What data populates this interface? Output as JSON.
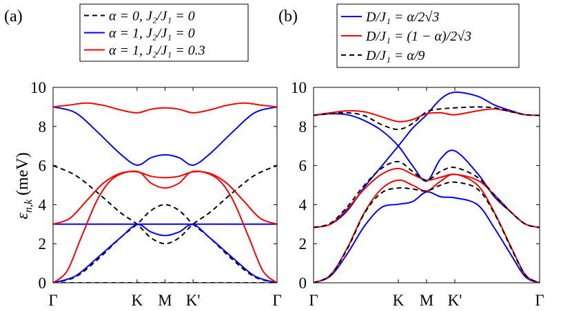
{
  "figure_title": "",
  "chart_data": [
    {
      "type": "line",
      "panel_label": "(a)",
      "xlabel": "",
      "ylabel": "ε_{n,k} (meV)",
      "ylabel_text": {
        "symbol": "ε",
        "subscript": "n,k",
        "unit": "(meV)"
      },
      "xlim": [
        0,
        4
      ],
      "ylim": [
        0,
        10
      ],
      "grid": false,
      "legend_placement": "top",
      "xticks": [
        {
          "value": 0,
          "label": "Γ"
        },
        {
          "value": 1.5,
          "label": "K"
        },
        {
          "value": 2.0,
          "label": "M"
        },
        {
          "value": 2.5,
          "label": "K'"
        },
        {
          "value": 4.0,
          "label": "Γ"
        }
      ],
      "yticks": [
        0,
        2,
        4,
        6,
        8,
        10
      ],
      "series": [
        {
          "name": "α = 0, J2/J1 = 0",
          "legend": "α = 0, J₂/J₁ = 0",
          "color": "#000000",
          "dash": true,
          "bands": [
            {
              "x": [
                0,
                1.5,
                2.5,
                4
              ],
              "y": [
                0,
                0,
                0,
                0
              ]
            },
            {
              "x": [
                0,
                0.4,
                0.8,
                1.2,
                1.5,
                1.75,
                2.0,
                2.25,
                2.5,
                2.8,
                3.2,
                3.6,
                4.0
              ],
              "y": [
                6,
                5.5,
                4.6,
                3.6,
                3,
                2.3,
                2,
                2.3,
                3,
                3.6,
                4.6,
                5.5,
                6
              ]
            },
            {
              "x": [
                0,
                0.4,
                0.8,
                1.2,
                1.5,
                1.75,
                2.0,
                2.25,
                2.5,
                2.8,
                3.2,
                3.6,
                4.0
              ],
              "y": [
                0,
                0.3,
                1.2,
                2.3,
                3,
                3.7,
                4,
                3.7,
                3,
                2.3,
                1.2,
                0.3,
                0
              ]
            }
          ]
        },
        {
          "name": "α = 1, J2/J1 = 0",
          "legend": "α = 1, J₂/J₁ = 0",
          "color": "#0000ff",
          "dash": false,
          "bands": [
            {
              "x": [
                0,
                4
              ],
              "y": [
                3,
                3
              ]
            },
            {
              "x": [
                0,
                0.4,
                0.8,
                1.2,
                1.5,
                1.75,
                2.0,
                2.25,
                2.5,
                2.8,
                3.2,
                3.6,
                4.0
              ],
              "y": [
                0,
                0.35,
                1.3,
                2.3,
                2.98,
                2.6,
                2.42,
                2.6,
                2.98,
                2.3,
                1.3,
                0.35,
                0
              ]
            },
            {
              "x": [
                0,
                0.4,
                0.8,
                1.2,
                1.5,
                1.75,
                2.0,
                2.25,
                2.5,
                2.8,
                3.2,
                3.6,
                4.0
              ],
              "y": [
                9,
                8.7,
                7.7,
                6.6,
                6.02,
                6.4,
                6.55,
                6.4,
                6.02,
                6.6,
                7.7,
                8.7,
                9
              ]
            }
          ]
        },
        {
          "name": "α = 1, J2/J1 = 0.3",
          "legend": "α = 1, J₂/J₁ = 0.3",
          "color": "#ff0000",
          "dash": false,
          "bands": [
            {
              "x": [
                0,
                0.25,
                0.5,
                0.8,
                1.1,
                1.5,
                1.75,
                2.0,
                2.25,
                2.5,
                2.9,
                3.2,
                3.5,
                3.75,
                4.0
              ],
              "y": [
                0,
                0.6,
                2.3,
                4.3,
                5.4,
                5.7,
                5.1,
                4.85,
                5.1,
                5.7,
                5.4,
                4.3,
                2.3,
                0.6,
                0
              ]
            },
            {
              "x": [
                0,
                0.3,
                0.6,
                0.9,
                1.2,
                1.5,
                1.75,
                2.0,
                2.25,
                2.5,
                2.8,
                3.1,
                3.4,
                3.7,
                4.0
              ],
              "y": [
                3,
                3.3,
                4.2,
                5.1,
                5.6,
                5.68,
                5.45,
                5.38,
                5.45,
                5.68,
                5.6,
                5.1,
                4.2,
                3.3,
                3
              ]
            },
            {
              "x": [
                0,
                0.3,
                0.6,
                0.9,
                1.2,
                1.5,
                1.75,
                2.0,
                2.25,
                2.5,
                2.8,
                3.1,
                3.4,
                3.7,
                4.0
              ],
              "y": [
                9,
                9.1,
                9.2,
                9.08,
                8.85,
                8.7,
                8.88,
                8.95,
                8.88,
                8.7,
                8.85,
                9.08,
                9.2,
                9.1,
                9
              ]
            }
          ]
        }
      ]
    },
    {
      "type": "line",
      "panel_label": "(b)",
      "xlabel": "",
      "ylabel": "",
      "xlim": [
        0,
        4
      ],
      "ylim": [
        0,
        10
      ],
      "grid": false,
      "legend_placement": "top",
      "xticks": [
        {
          "value": 0,
          "label": "Γ"
        },
        {
          "value": 1.5,
          "label": "K"
        },
        {
          "value": 2.0,
          "label": "M"
        },
        {
          "value": 2.5,
          "label": "K'"
        },
        {
          "value": 4.0,
          "label": "Γ"
        }
      ],
      "yticks": [
        0,
        2,
        4,
        6,
        8,
        10
      ],
      "series": [
        {
          "name": "D/J1 = α/2√3",
          "legend": "D/J₁ = α/2√3",
          "color": "#0000ff",
          "dash": false,
          "bands": [
            {
              "x": [
                0,
                0.3,
                0.6,
                0.9,
                1.2,
                1.5,
                1.75,
                2.0,
                2.25,
                2.5,
                2.9,
                3.2,
                3.5,
                3.75,
                4.0
              ],
              "y": [
                0,
                0.35,
                1.5,
                2.9,
                3.85,
                4.02,
                4.15,
                4.65,
                4.4,
                4.35,
                4.0,
                2.8,
                1.4,
                0.3,
                0
              ]
            },
            {
              "x": [
                0,
                0.3,
                0.6,
                0.9,
                1.2,
                1.5,
                1.75,
                2.0,
                2.25,
                2.5,
                2.9,
                3.2,
                3.5,
                3.75,
                4.0
              ],
              "y": [
                2.83,
                3.0,
                3.7,
                4.9,
                5.95,
                7.0,
                7.9,
                8.6,
                9.4,
                9.75,
                9.55,
                9.1,
                8.8,
                8.6,
                8.57
              ]
            },
            {
              "x": [
                0,
                0.3,
                0.6,
                0.9,
                1.2,
                1.5,
                1.75,
                2.0,
                2.25,
                2.5,
                2.9,
                3.2,
                3.5,
                3.75,
                4.0
              ],
              "y": [
                8.57,
                8.65,
                8.6,
                8.3,
                7.8,
                7.0,
                6.0,
                5.2,
                6.35,
                6.75,
                5.6,
                4.4,
                3.6,
                3.0,
                2.83
              ]
            }
          ]
        },
        {
          "name": "D/J1 = (1−α)/2√3",
          "legend": "D/J₁ = (1 − α)/2√3",
          "color": "#ff0000",
          "dash": false,
          "bands": [
            {
              "x": [
                0,
                0.3,
                0.6,
                0.9,
                1.2,
                1.5,
                1.75,
                2.0,
                2.25,
                2.5,
                2.9,
                3.2,
                3.5,
                3.75,
                4.0
              ],
              "y": [
                0,
                0.4,
                1.8,
                3.6,
                4.8,
                5.25,
                5.0,
                4.7,
                5.2,
                5.55,
                5.0,
                3.6,
                1.8,
                0.4,
                0
              ]
            },
            {
              "x": [
                0,
                0.3,
                0.6,
                0.9,
                1.2,
                1.5,
                1.75,
                2.0,
                2.25,
                2.5,
                2.9,
                3.2,
                3.5,
                3.75,
                4.0
              ],
              "y": [
                2.83,
                3.0,
                3.8,
                4.8,
                5.55,
                5.85,
                5.55,
                5.25,
                5.4,
                5.55,
                5.25,
                4.5,
                3.6,
                3.0,
                2.83
              ]
            },
            {
              "x": [
                0,
                0.3,
                0.6,
                0.9,
                1.2,
                1.5,
                1.75,
                2.0,
                2.25,
                2.5,
                2.9,
                3.2,
                3.5,
                3.75,
                4.0
              ],
              "y": [
                8.57,
                8.7,
                8.8,
                8.75,
                8.5,
                8.25,
                8.35,
                8.65,
                8.7,
                8.6,
                8.8,
                8.9,
                8.75,
                8.6,
                8.57
              ]
            }
          ]
        },
        {
          "name": "D/J1 = α/9",
          "legend": "D/J₁ = α/9",
          "color": "#000000",
          "dash": true,
          "bands": [
            {
              "x": [
                0,
                0.3,
                0.6,
                0.9,
                1.2,
                1.5,
                1.75,
                2.0,
                2.25,
                2.5,
                2.9,
                3.2,
                3.5,
                3.75,
                4.0
              ],
              "y": [
                0,
                0.4,
                1.75,
                3.55,
                4.6,
                4.85,
                4.8,
                4.7,
                5.0,
                5.15,
                4.8,
                3.55,
                1.75,
                0.4,
                0
              ]
            },
            {
              "x": [
                0,
                0.3,
                0.6,
                0.9,
                1.2,
                1.5,
                1.75,
                2.0,
                2.25,
                2.5,
                2.9,
                3.2,
                3.5,
                3.75,
                4.0
              ],
              "y": [
                2.83,
                3.05,
                3.9,
                5.0,
                5.85,
                6.2,
                5.7,
                5.25,
                5.7,
                5.9,
                5.4,
                4.5,
                3.6,
                3.0,
                2.83
              ]
            },
            {
              "x": [
                0,
                0.3,
                0.6,
                0.9,
                1.2,
                1.5,
                1.75,
                2.0,
                2.25,
                2.5,
                2.9,
                3.2,
                3.5,
                3.75,
                4.0
              ],
              "y": [
                8.57,
                8.65,
                8.7,
                8.55,
                8.1,
                7.85,
                8.15,
                8.75,
                8.9,
                8.95,
                9.0,
                8.95,
                8.75,
                8.6,
                8.57
              ]
            }
          ]
        }
      ]
    }
  ]
}
